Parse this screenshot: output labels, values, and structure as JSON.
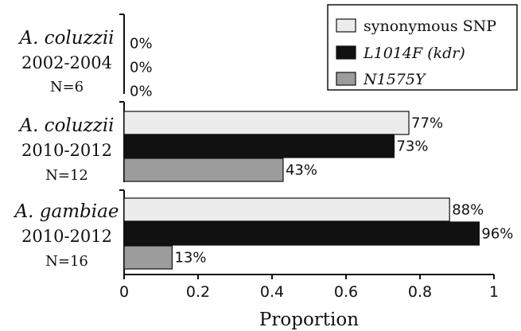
{
  "chart_data": {
    "type": "bar",
    "orientation": "horizontal",
    "xlabel": "Proportion",
    "xlim": [
      0,
      1
    ],
    "xticks": [
      "0",
      "0.2",
      "0.4",
      "0.6",
      "0.8",
      "1"
    ],
    "grid": false,
    "legend_position": "top-right",
    "groups": [
      {
        "species": "A. coluzzii",
        "years": "2002-2004",
        "n": "N=6"
      },
      {
        "species": "A. coluzzii",
        "years": "2010-2012",
        "n": "N=12"
      },
      {
        "species": "A. gambiae",
        "years": "2010-2012",
        "n": "N=16"
      }
    ],
    "series": [
      {
        "name": "synonymous SNP",
        "color": "#ececec",
        "values": [
          0.0,
          0.77,
          0.88
        ],
        "labels": [
          "0%",
          "77%",
          "88%"
        ]
      },
      {
        "name": "L1014F (kdr)",
        "color": "#111111",
        "values": [
          0.0,
          0.73,
          0.96
        ],
        "labels": [
          "0%",
          "73%",
          "96%"
        ]
      },
      {
        "name": "N1575Y",
        "color": "#9c9c9c",
        "values": [
          0.0,
          0.43,
          0.13
        ],
        "labels": [
          "0%",
          "43%",
          "13%"
        ]
      }
    ]
  }
}
